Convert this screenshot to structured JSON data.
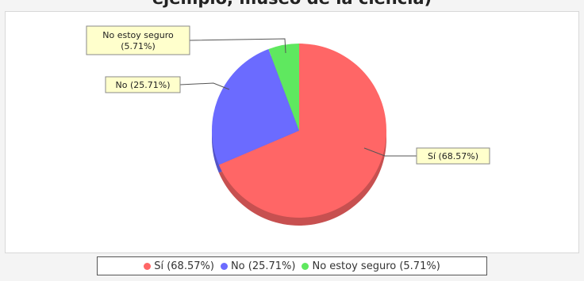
{
  "chart_data": {
    "type": "pie",
    "title": "ejemplo, museo de la ciencia)",
    "slices": [
      {
        "label": "Sí",
        "value": 68.57,
        "color": "#ff6666",
        "callout": "Sí (68.57%)",
        "legend": "Sí (68.57%)"
      },
      {
        "label": "No",
        "value": 25.71,
        "color": "#6b6bff",
        "callout": "No (25.71%)",
        "legend": "No (25.71%)"
      },
      {
        "label": "No estoy seguro",
        "value": 5.71,
        "color": "#5fe85f",
        "callout": [
          "No estoy seguro",
          "(5.71%)"
        ],
        "legend": "No estoy seguro (5.71%)"
      }
    ],
    "legend_position": "bottom"
  },
  "colors": {
    "label_box_bg": "#ffffcc",
    "label_box_border": "#888888",
    "leader_line": "#555555"
  }
}
